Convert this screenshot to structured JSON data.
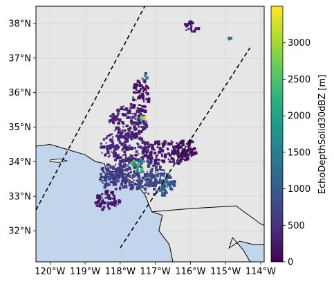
{
  "chart_data": {
    "type": "heatmap",
    "title": "",
    "xlabel": "",
    "ylabel": "",
    "projection": "lat-lon map",
    "xlim": [
      -120.4,
      -113.9
    ],
    "ylim": [
      31.1,
      38.5
    ],
    "x_ticks": [
      {
        "value": -120,
        "label": "120°W"
      },
      {
        "value": -119,
        "label": "119°W"
      },
      {
        "value": -118,
        "label": "118°W"
      },
      {
        "value": -117,
        "label": "117°W"
      },
      {
        "value": -116,
        "label": "116°W"
      },
      {
        "value": -115,
        "label": "115°W"
      },
      {
        "value": -114,
        "label": "114°W"
      }
    ],
    "y_ticks": [
      {
        "value": 32,
        "label": "32°N"
      },
      {
        "value": 33,
        "label": "33°N"
      },
      {
        "value": 34,
        "label": "34°N"
      },
      {
        "value": 35,
        "label": "35°N"
      },
      {
        "value": 36,
        "label": "36°N"
      },
      {
        "value": 37,
        "label": "37°N"
      },
      {
        "value": 38,
        "label": "38°N"
      }
    ],
    "grid": true,
    "colors": {
      "land": "#e6e6e6",
      "ocean": "#c3d5ec",
      "grid": "#d0d0d0",
      "coastline": "#000000",
      "swath_edge": "#000000"
    },
    "colorbar": {
      "label": "EchoDepthSolid30dBZ [m]",
      "colormap": "viridis",
      "range": [
        0,
        3500
      ],
      "ticks": [
        0,
        500,
        1000,
        1500,
        2000,
        2500,
        3000
      ],
      "tick_labels": [
        "0",
        "500",
        "1000",
        "1500",
        "2000",
        "2500",
        "3000"
      ]
    },
    "swath_edges": [
      {
        "name": "left-edge",
        "points": [
          [
            -120.4,
            32.6
          ],
          [
            -117.3,
            38.5
          ]
        ]
      },
      {
        "name": "right-edge",
        "points": [
          [
            -118.0,
            31.5
          ],
          [
            -114.3,
            37.3
          ]
        ]
      }
    ],
    "land_polygon": [
      [
        -120.4,
        34.45
      ],
      [
        -120.0,
        34.5
      ],
      [
        -119.5,
        34.35
      ],
      [
        -119.0,
        34.2
      ],
      [
        -118.7,
        34.0
      ],
      [
        -118.45,
        33.95
      ],
      [
        -118.4,
        33.75
      ],
      [
        -118.1,
        33.7
      ],
      [
        -117.85,
        33.55
      ],
      [
        -117.5,
        33.3
      ],
      [
        -117.3,
        33.05
      ],
      [
        -117.1,
        32.55
      ],
      [
        -116.8,
        32.45
      ],
      [
        -116.9,
        32.0
      ],
      [
        -116.6,
        31.6
      ],
      [
        -116.5,
        31.1
      ],
      [
        -114.3,
        31.1
      ],
      [
        -114.5,
        31.45
      ],
      [
        -114.8,
        31.8
      ],
      [
        -114.9,
        31.5
      ],
      [
        -114.6,
        31.7
      ],
      [
        -114.2,
        31.6
      ],
      [
        -113.9,
        31.6
      ],
      [
        -113.9,
        38.5
      ],
      [
        -120.4,
        38.5
      ]
    ],
    "borders": [
      {
        "name": "us-mexico-border",
        "points": [
          [
            -117.1,
            32.55
          ],
          [
            -115.9,
            32.65
          ],
          [
            -114.7,
            32.72
          ],
          [
            -114.0,
            32.2
          ],
          [
            -113.9,
            32.15
          ]
        ]
      }
    ],
    "islands": [
      {
        "name": "santa-cruz-island",
        "points": [
          [
            -120.0,
            34.05
          ],
          [
            -119.7,
            34.08
          ],
          [
            -119.5,
            34.02
          ],
          [
            -119.75,
            33.98
          ],
          [
            -120.0,
            34.0
          ]
        ]
      },
      {
        "name": "santa-catalina-island",
        "points": [
          [
            -118.6,
            33.48
          ],
          [
            -118.45,
            33.45
          ],
          [
            -118.3,
            33.32
          ],
          [
            -118.5,
            33.38
          ]
        ]
      },
      {
        "name": "san-clemente-island",
        "points": [
          [
            -118.6,
            33.05
          ],
          [
            -118.5,
            32.95
          ],
          [
            -118.45,
            32.8
          ],
          [
            -118.55,
            32.9
          ]
        ]
      }
    ],
    "echo_regions": [
      {
        "lon": -117.6,
        "lat": 33.7,
        "rx": 0.85,
        "ry": 0.45,
        "value": 650
      },
      {
        "lon": -117.0,
        "lat": 33.4,
        "rx": 0.55,
        "ry": 0.35,
        "value": 950
      },
      {
        "lon": -118.2,
        "lat": 33.6,
        "rx": 0.45,
        "ry": 0.4,
        "value": 750
      },
      {
        "lon": -117.9,
        "lat": 34.45,
        "rx": 0.7,
        "ry": 0.45,
        "value": 400
      },
      {
        "lon": -116.7,
        "lat": 34.3,
        "rx": 0.7,
        "ry": 0.35,
        "value": 250
      },
      {
        "lon": -117.8,
        "lat": 35.2,
        "rx": 0.55,
        "ry": 0.5,
        "value": 350
      },
      {
        "lon": -117.45,
        "lat": 35.95,
        "rx": 0.25,
        "ry": 0.5,
        "value": 150
      },
      {
        "lon": -116.2,
        "lat": 34.4,
        "rx": 0.35,
        "ry": 0.3,
        "value": 150
      },
      {
        "lon": -118.4,
        "lat": 32.9,
        "rx": 0.35,
        "ry": 0.3,
        "value": 300
      },
      {
        "lon": -116.0,
        "lat": 37.95,
        "rx": 0.2,
        "ry": 0.2,
        "value": 200
      },
      {
        "lon": -117.5,
        "lat": 33.9,
        "rx": 0.25,
        "ry": 0.2,
        "value": 2400
      },
      {
        "lon": -116.75,
        "lat": 33.4,
        "rx": 0.18,
        "ry": 0.18,
        "value": 1400
      },
      {
        "lon": -117.35,
        "lat": 36.5,
        "rx": 0.08,
        "ry": 0.15,
        "value": 1300
      },
      {
        "lon": -117.4,
        "lat": 35.3,
        "rx": 0.06,
        "ry": 0.05,
        "value": 3300
      },
      {
        "lon": -114.9,
        "lat": 37.6,
        "rx": 0.05,
        "ry": 0.05,
        "value": 1300
      }
    ]
  }
}
